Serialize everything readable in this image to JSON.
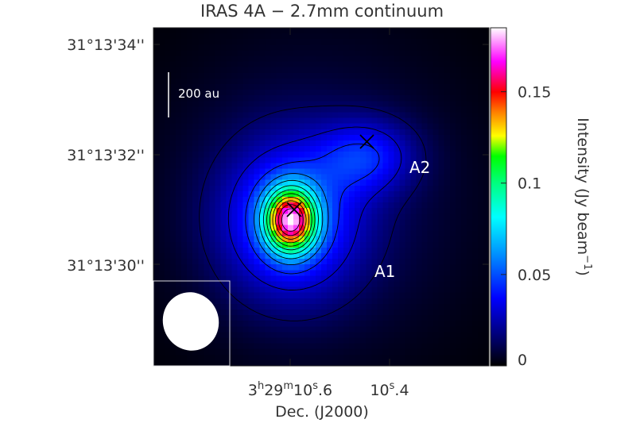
{
  "chart_data": {
    "type": "heatmap",
    "title": "IRAS 4A − 2.7mm continuum",
    "xlabel": "Dec. (J2000)",
    "ylabel": "",
    "x_ticks": [
      {
        "value": 10.6,
        "h": "3",
        "m": "29",
        "s": "10",
        "frac": ".6"
      },
      {
        "value": 10.4,
        "h": "",
        "m": "",
        "s": "10",
        "frac": ".4"
      }
    ],
    "y_ticks": [
      {
        "value": 34,
        "label": "31°13'34''"
      },
      {
        "value": 32,
        "label": "31°13'32''"
      },
      {
        "value": 30,
        "label": "31°13'30''"
      }
    ],
    "xlim": [
      10.74,
      10.3
    ],
    "ylim": [
      28.6,
      34.4
    ],
    "colorbar": {
      "label_prefix": "Intensity (Jy beam",
      "label_sup": "−1",
      "label_suffix": ")",
      "range": [
        0,
        0.185
      ],
      "ticks": [
        {
          "value": 0,
          "label": "0"
        },
        {
          "value": 0.05,
          "label": "0.05"
        },
        {
          "value": 0.1,
          "label": "0.1"
        },
        {
          "value": 0.15,
          "label": "0.15"
        }
      ]
    },
    "sources": [
      {
        "name": "A1",
        "x": 10.56,
        "y": 31.1,
        "peak": 0.18
      },
      {
        "name": "A2",
        "x": 10.46,
        "y": 32.2,
        "peak": 0.055
      }
    ],
    "scale_bar": {
      "label": "200 au"
    }
  }
}
